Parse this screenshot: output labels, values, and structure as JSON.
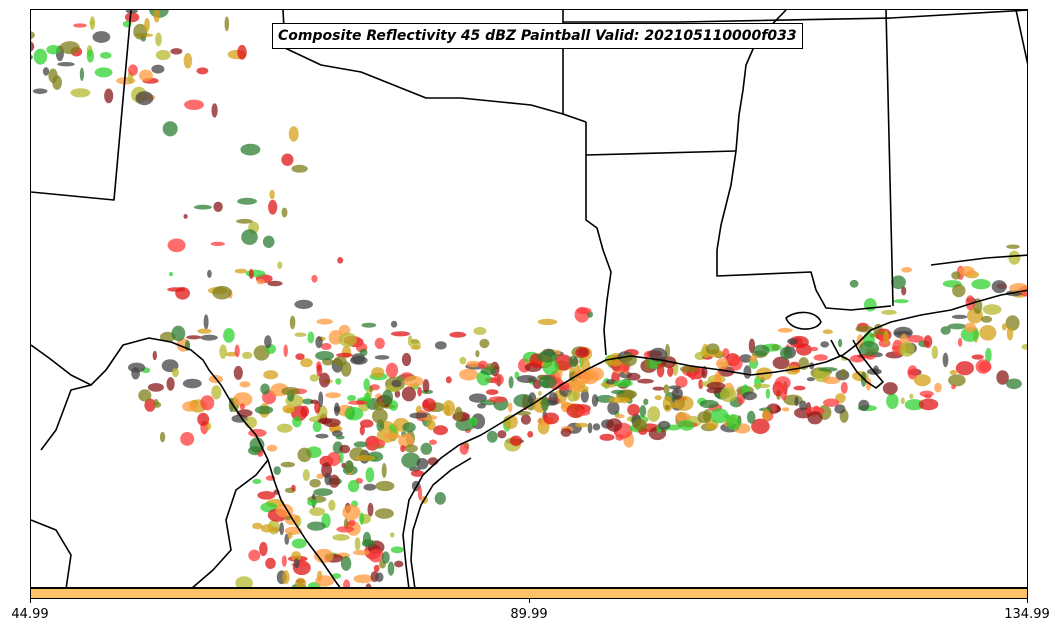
{
  "title": "Composite Reflectivity 45 dBZ Paintball Valid: 202105110000f033",
  "colorbar": {
    "color": "#ffc266",
    "ticks": [
      "44.99",
      "89.99",
      "134.99"
    ]
  },
  "paintball_colors": [
    "#8b1a1a",
    "#ff9a3c",
    "#e01515",
    "#2fd12f",
    "#7f7f1a",
    "#444444",
    "#d4a017",
    "#2e7d32",
    "#b5b82f",
    "#ff3b3b"
  ]
}
